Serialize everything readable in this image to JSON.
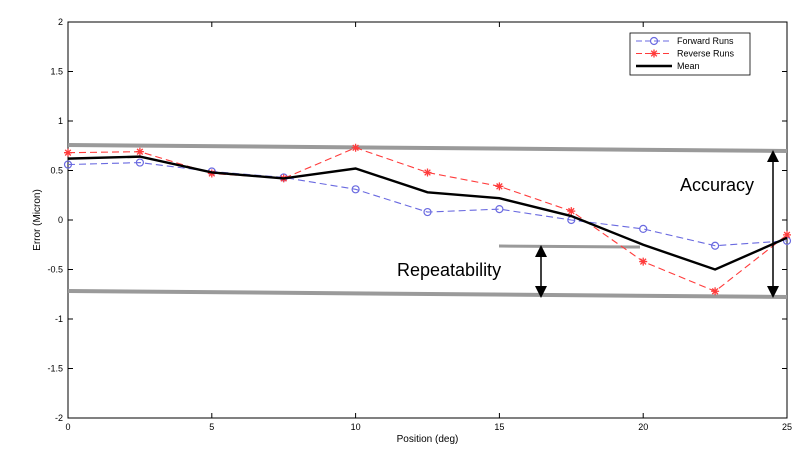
{
  "chart_data": {
    "type": "line",
    "xlabel": "Position (deg)",
    "ylabel": "Error (Micron)",
    "xlim": [
      0,
      25
    ],
    "ylim": [
      -2,
      2
    ],
    "xticks": [
      0,
      5,
      10,
      15,
      20,
      25
    ],
    "yticks": [
      -2,
      -1.5,
      -1,
      -0.5,
      0,
      0.5,
      1,
      1.5,
      2
    ],
    "grid": false,
    "legend_position": "top-right",
    "series": [
      {
        "name": "Forward Runs",
        "color": "#6a6ae0",
        "style": "dashed",
        "marker": "circle",
        "x": [
          0,
          2.5,
          5,
          7.5,
          10,
          12.5,
          15,
          17.5,
          20,
          22.5,
          25
        ],
        "values": [
          0.56,
          0.58,
          0.49,
          0.43,
          0.31,
          0.08,
          0.11,
          0.0,
          -0.09,
          -0.26,
          -0.21
        ]
      },
      {
        "name": "Reverse Runs",
        "color": "#ff3b3b",
        "style": "dashed",
        "marker": "star",
        "x": [
          0,
          2.5,
          5,
          7.5,
          10,
          12.5,
          15,
          17.5,
          20,
          22.5,
          25
        ],
        "values": [
          0.68,
          0.69,
          0.47,
          0.42,
          0.73,
          0.48,
          0.34,
          0.09,
          -0.42,
          -0.72,
          -0.15
        ]
      },
      {
        "name": "Mean",
        "color": "#000000",
        "style": "solid",
        "marker": "none",
        "x": [
          0,
          2.5,
          5,
          7.5,
          10,
          12.5,
          15,
          17.5,
          20,
          22.5,
          25
        ],
        "values": [
          0.62,
          0.64,
          0.48,
          0.42,
          0.52,
          0.28,
          0.22,
          0.04,
          -0.25,
          -0.5,
          -0.18
        ]
      }
    ],
    "annotations": {
      "accuracy": {
        "label": "Accuracy",
        "color": "#9a9a9a"
      },
      "repeatability": {
        "label": "Repeatability",
        "color": "#9a9a9a"
      }
    }
  }
}
